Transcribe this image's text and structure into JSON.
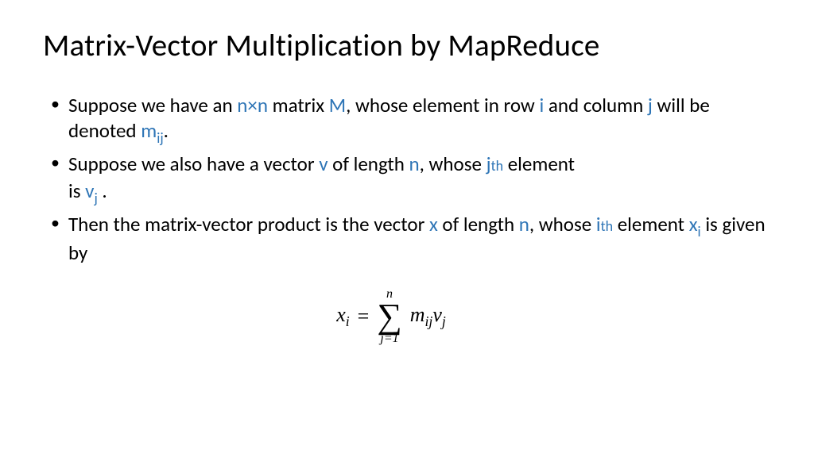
{
  "colors": {
    "highlight": "#2e75b6",
    "text": "#000000",
    "background": "#ffffff"
  },
  "title": "Matrix-Vector Multiplication by MapReduce",
  "bullets": {
    "b1": {
      "t1": "Suppose we have an ",
      "n1": "n",
      "times": "×",
      "n2": "n",
      "t2": " matrix ",
      "M": "M",
      "t3": ", whose element in row ",
      "i": "i",
      "t4": " and column ",
      "j": "j",
      "t5": " will be denoted ",
      "m": "m",
      "ij": "ij",
      "t6": "."
    },
    "b2": {
      "t1": "Suppose we also have a vector ",
      "v": "v",
      "t2": " of length ",
      "n": "n",
      "t3": ", whose ",
      "j": "j",
      "th": "th",
      "t4": " element",
      "cont1": "is ",
      "vj_v": "v",
      "vj_j": "j",
      "cont2": " ."
    },
    "b3": {
      "t1": "Then the matrix-vector product is the vector ",
      "x": "x",
      "t2": " of length ",
      "n": "n",
      "t3": ", whose ",
      "i": "i",
      "th": "th",
      "t4": " element ",
      "xi_x": "x",
      "xi_i": "i",
      "t5": " is given by"
    }
  },
  "formula": {
    "lhs_x": "x",
    "lhs_i": "i",
    "eq": "=",
    "upper": "n",
    "sigma": "∑",
    "lower": "j=1",
    "m": "m",
    "ij": "ij",
    "v": "v",
    "j": "j"
  }
}
